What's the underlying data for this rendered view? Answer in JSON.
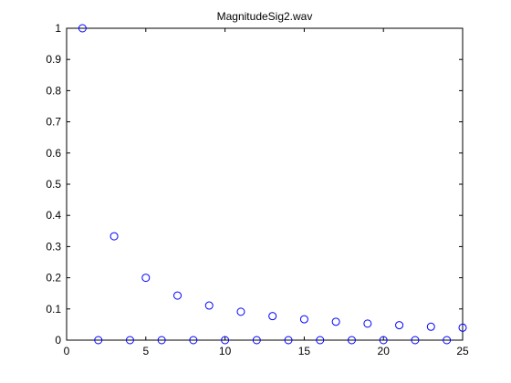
{
  "chart_data": {
    "type": "scatter",
    "title": "MagnitudeSig2.wav",
    "xlabel": "",
    "ylabel": "",
    "xlim": [
      0,
      25
    ],
    "ylim": [
      0,
      1
    ],
    "grid": false,
    "marker": "circle",
    "marker_color": "#0000ff",
    "xticks": [
      0,
      5,
      10,
      15,
      20,
      25
    ],
    "yticks": [
      0,
      0.1,
      0.2,
      0.3,
      0.4,
      0.5,
      0.6,
      0.7,
      0.8,
      0.9,
      1
    ],
    "xtick_labels": [
      "0",
      "5",
      "10",
      "15",
      "20",
      "25"
    ],
    "ytick_labels": [
      "0",
      "0.1",
      "0.2",
      "0.3",
      "0.4",
      "0.5",
      "0.6",
      "0.7",
      "0.8",
      "0.9",
      "1"
    ],
    "series": [
      {
        "x": [
          1,
          2,
          3,
          4,
          5,
          6,
          7,
          8,
          9,
          10,
          11,
          12,
          13,
          14,
          15,
          16,
          17,
          18,
          19,
          20,
          21,
          22,
          23,
          24,
          25
        ],
        "y": [
          1,
          0,
          0.333,
          0,
          0.2,
          0,
          0.143,
          0,
          0.111,
          0,
          0.091,
          0,
          0.077,
          0,
          0.067,
          0,
          0.059,
          0,
          0.053,
          0,
          0.048,
          0,
          0.043,
          0,
          0.04
        ]
      }
    ]
  }
}
